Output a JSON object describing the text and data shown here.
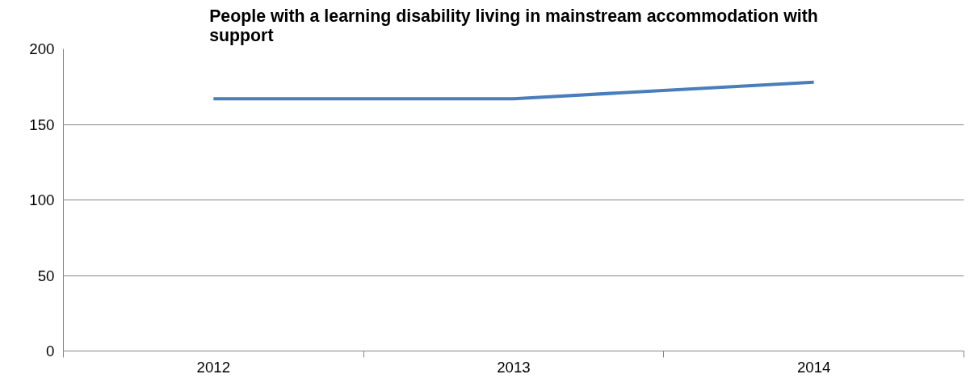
{
  "chart_data": {
    "type": "line",
    "title": "People with a learning disability living in mainstream accommodation with support",
    "categories": [
      "2012",
      "2013",
      "2014"
    ],
    "series": [
      {
        "color": "#4a7ebb",
        "values": [
          167,
          167,
          178
        ]
      }
    ],
    "ylim": [
      0,
      200
    ],
    "yticks": [
      0,
      50,
      100,
      150,
      200
    ],
    "grid": "y",
    "marker": "none",
    "line_style": "solid"
  }
}
